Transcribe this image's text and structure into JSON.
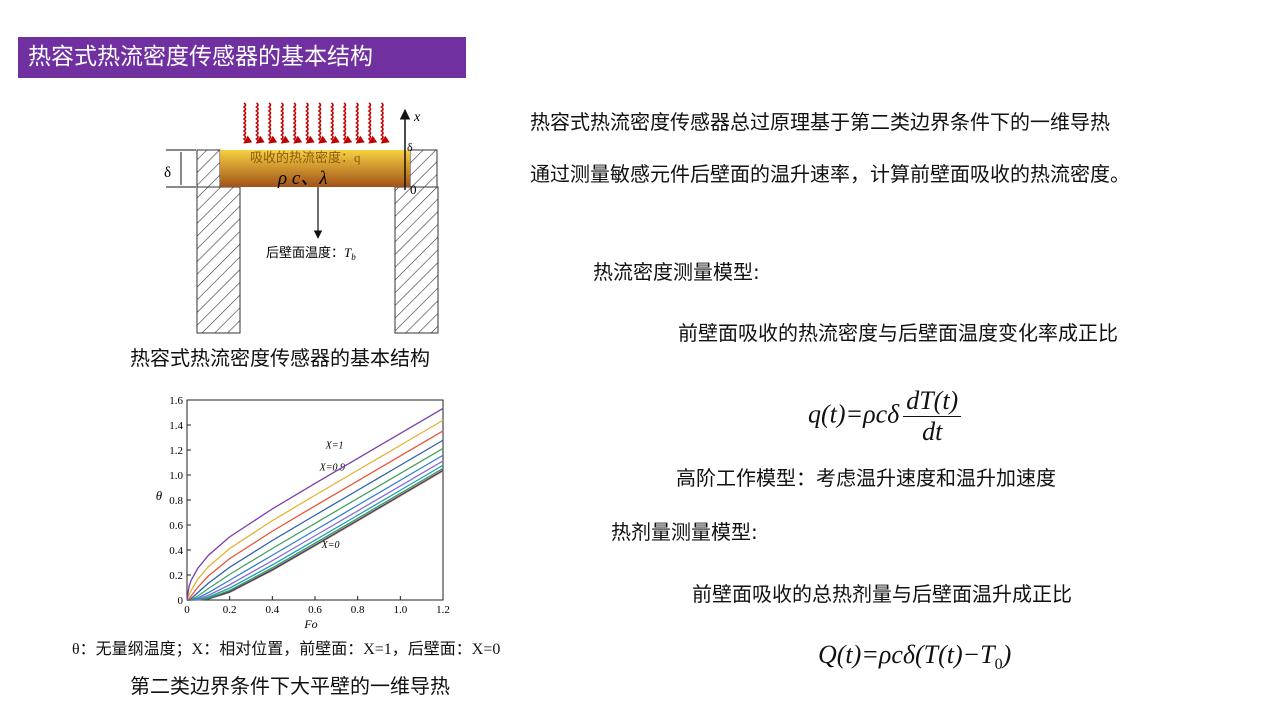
{
  "header": {
    "title": "热容式热流密度传感器的基本结构"
  },
  "figure1": {
    "absorbed": "吸收的热流密度：q",
    "properties": "ρ c、λ",
    "back_label": "后壁面温度：",
    "back_symbol": "T",
    "back_sub": "b",
    "axis_x": "x",
    "axis_zero": "0",
    "delta_left": "δ",
    "delta_right": "δ",
    "caption": "热容式热流密度传感器的基本结构"
  },
  "chart_data": {
    "type": "line",
    "x_label": "Fo",
    "y_label": "θ",
    "x": [
      0,
      0.01,
      0.02,
      0.05,
      0.1,
      0.2,
      0.4,
      0.6,
      0.8,
      1.0,
      1.2
    ],
    "xlim": [
      0,
      1.2
    ],
    "ylim": [
      0,
      1.6
    ],
    "xticks": [
      0,
      0.2,
      0.4,
      0.6,
      0.8,
      {
        "value": 1,
        "label": "1.0"
      },
      1.2
    ],
    "yticks": [
      0,
      0.2,
      0.4,
      0.6,
      0.8,
      {
        "value": 1,
        "label": "1.0"
      },
      1.2,
      1.4,
      1.6
    ],
    "series": [
      {
        "name": "X=0",
        "color": "#e07b1f",
        "values": [
          0,
          0,
          0,
          0,
          0.008,
          0.061,
          0.237,
          0.434,
          0.633,
          0.833,
          1.033
        ]
      },
      {
        "color": "#3a3a98",
        "values": [
          0,
          0,
          0,
          0.001,
          0.009,
          0.065,
          0.242,
          0.439,
          0.638,
          0.838,
          1.038
        ]
      },
      {
        "color": "#3c9c3c",
        "values": [
          0,
          0,
          0,
          0.001,
          0.014,
          0.076,
          0.257,
          0.454,
          0.653,
          0.853,
          1.053
        ]
      },
      {
        "color": "#1aa0b4",
        "values": [
          0,
          0,
          0,
          0.002,
          0.023,
          0.095,
          0.281,
          0.479,
          0.678,
          0.878,
          1.078
        ]
      },
      {
        "color": "#8c6bd0",
        "values": [
          0,
          0,
          0,
          0.006,
          0.037,
          0.122,
          0.315,
          0.514,
          0.713,
          0.913,
          1.113
        ]
      },
      {
        "color": "#2f7fd0",
        "values": [
          0,
          0,
          0.001,
          0.015,
          0.059,
          0.158,
          0.358,
          0.558,
          0.758,
          0.958,
          1.158
        ]
      },
      {
        "color": "#4aa060",
        "values": [
          0,
          0,
          0.003,
          0.031,
          0.091,
          0.205,
          0.412,
          0.613,
          0.813,
          1.013,
          1.213
        ]
      },
      {
        "color": "#2a5fb0",
        "values": [
          0,
          0.002,
          0.012,
          0.058,
          0.134,
          0.262,
          0.476,
          0.678,
          0.878,
          1.078,
          1.278
        ]
      },
      {
        "color": "#e8553a",
        "values": [
          0,
          0.01,
          0.033,
          0.101,
          0.192,
          0.331,
          0.55,
          0.753,
          0.953,
          1.153,
          1.353
        ]
      },
      {
        "name": "X=0.9",
        "color": "#e8b030",
        "values": [
          0,
          0.04,
          0.079,
          0.165,
          0.266,
          0.412,
          0.635,
          0.838,
          1.038,
          1.238,
          1.438
        ]
      },
      {
        "name": "X=1",
        "color": "#7a3ea8",
        "values": [
          0,
          0.113,
          0.16,
          0.252,
          0.357,
          0.505,
          0.729,
          0.933,
          1.133,
          1.333,
          1.533
        ]
      }
    ]
  },
  "figure2": {
    "note": "θ：无量纲温度；X：相对位置，前壁面：X=1，后壁面：X=0",
    "caption": "第二类边界条件下大平壁的一维导热"
  },
  "content": {
    "intro_line1": "热容式热流密度传感器总过原理基于第二类边界条件下的一维导热",
    "intro_line2": "通过测量敏感元件后壁面的温升速率，计算前壁面吸收的热流密度。",
    "model1_title": "热流密度测量模型:",
    "model1_text": "前壁面吸收的热流密度与后壁面温度变化率成正比",
    "formula1_lhs": "q(t)=ρcδ",
    "formula1_num": "dT(t)",
    "formula1_den": "dt",
    "higher_order": "高阶工作模型：考虑温升速度和温升加速度",
    "model2_title": "热剂量测量模型:",
    "model2_text": "前壁面吸收的总热剂量与后壁面温升成正比",
    "formula2_main": "Q(t)=ρcδ(T(t)−T",
    "formula2_sub": "0",
    "formula2_end": ")"
  }
}
